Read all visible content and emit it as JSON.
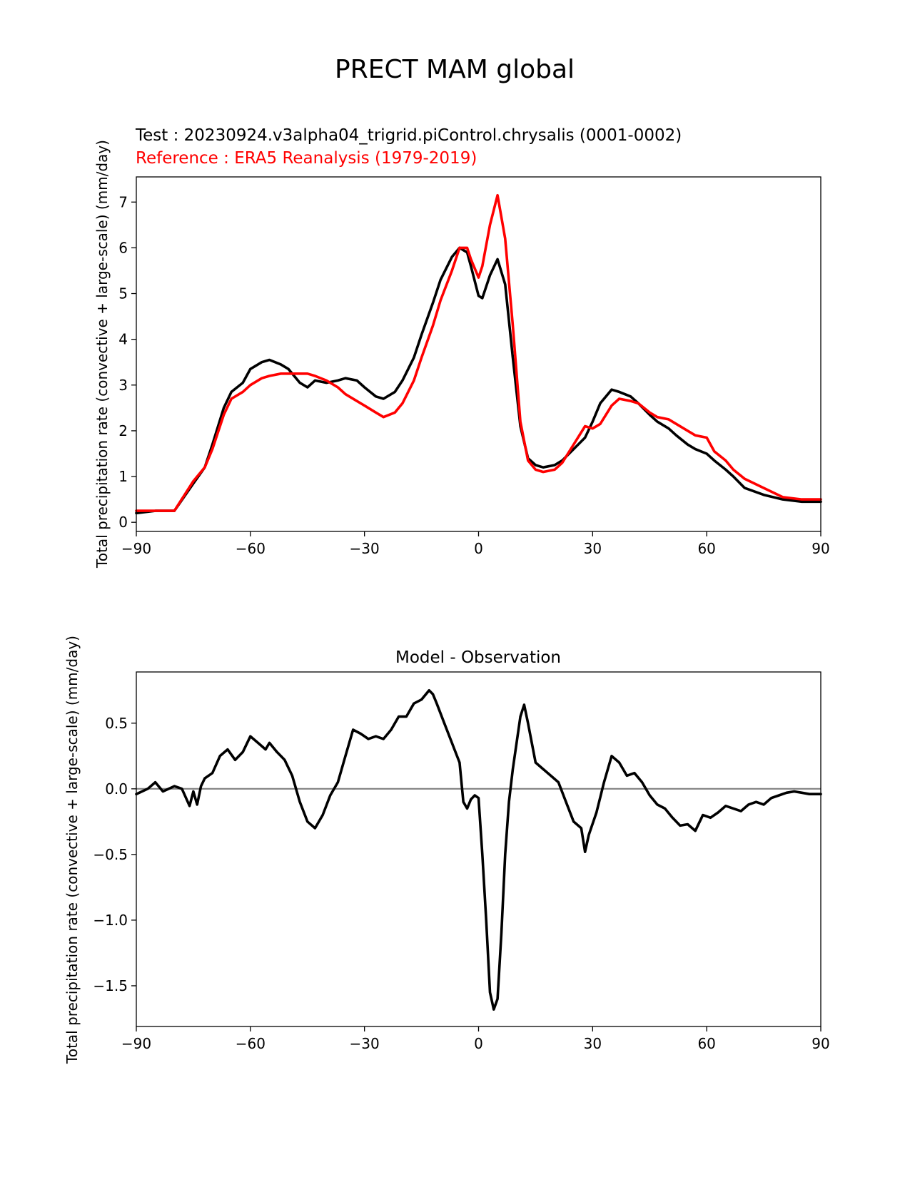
{
  "figure": {
    "suptitle": "PRECT MAM global"
  },
  "chart_data": [
    {
      "type": "line",
      "test_label": "Test : 20230924.v3alpha04_trigrid.piControl.chrysalis (0001-0002)",
      "reference_label": "Reference : ERA5 Reanalysis (1979-2019)",
      "xlabel": "",
      "ylabel": "Total precipitation rate (convective + large-scale) (mm/day)",
      "xlim": [
        -90,
        90
      ],
      "ylim": [
        -0.2,
        7.55
      ],
      "xticks": [
        -90,
        -60,
        -30,
        0,
        30,
        60,
        90
      ],
      "xtick_labels": [
        "−90",
        "−60",
        "−30",
        "0",
        "30",
        "60",
        "90"
      ],
      "yticks": [
        0,
        1,
        2,
        3,
        4,
        5,
        6,
        7
      ],
      "ytick_labels": [
        "0",
        "1",
        "2",
        "3",
        "4",
        "5",
        "6",
        "7"
      ],
      "grid": false,
      "colors": {
        "test": "#000000",
        "reference": "#ff0000"
      },
      "x": [
        -90,
        -85,
        -80,
        -75,
        -72,
        -70,
        -67,
        -65,
        -62,
        -60,
        -57,
        -55,
        -52,
        -50,
        -47,
        -45,
        -43,
        -40,
        -37,
        -35,
        -32,
        -30,
        -27,
        -25,
        -22,
        -20,
        -17,
        -15,
        -12,
        -10,
        -7,
        -5,
        -3,
        -2,
        0,
        1,
        3,
        5,
        7,
        9,
        11,
        13,
        15,
        17,
        20,
        22,
        25,
        28,
        30,
        32,
        35,
        37,
        40,
        42,
        45,
        47,
        50,
        52,
        55,
        57,
        60,
        62,
        65,
        67,
        70,
        75,
        80,
        85,
        90
      ],
      "series": [
        {
          "values": [
            0.2,
            0.25,
            0.25,
            0.85,
            1.2,
            1.7,
            2.5,
            2.85,
            3.05,
            3.35,
            3.5,
            3.55,
            3.45,
            3.35,
            3.05,
            2.95,
            3.1,
            3.05,
            3.1,
            3.15,
            3.1,
            2.95,
            2.75,
            2.7,
            2.85,
            3.1,
            3.6,
            4.1,
            4.8,
            5.3,
            5.8,
            6.0,
            5.9,
            5.6,
            4.95,
            4.9,
            5.4,
            5.75,
            5.2,
            3.6,
            2.1,
            1.4,
            1.25,
            1.2,
            1.25,
            1.35,
            1.6,
            1.85,
            2.2,
            2.6,
            2.9,
            2.85,
            2.75,
            2.6,
            2.35,
            2.2,
            2.05,
            1.9,
            1.7,
            1.6,
            1.5,
            1.35,
            1.15,
            1.0,
            0.75,
            0.6,
            0.5,
            0.45,
            0.45
          ]
        },
        {
          "values": [
            0.25,
            0.25,
            0.25,
            0.9,
            1.2,
            1.6,
            2.35,
            2.7,
            2.85,
            3.0,
            3.15,
            3.2,
            3.25,
            3.25,
            3.25,
            3.25,
            3.2,
            3.1,
            2.95,
            2.8,
            2.65,
            2.55,
            2.4,
            2.3,
            2.4,
            2.6,
            3.1,
            3.6,
            4.3,
            4.85,
            5.5,
            6.0,
            6.0,
            5.75,
            5.35,
            5.6,
            6.5,
            7.15,
            6.2,
            4.3,
            2.2,
            1.35,
            1.15,
            1.1,
            1.15,
            1.3,
            1.7,
            2.1,
            2.05,
            2.15,
            2.55,
            2.7,
            2.65,
            2.6,
            2.4,
            2.3,
            2.25,
            2.15,
            2.0,
            1.9,
            1.85,
            1.55,
            1.35,
            1.15,
            0.95,
            0.75,
            0.55,
            0.5,
            0.5
          ]
        }
      ]
    },
    {
      "type": "line",
      "title": "Model - Observation",
      "xlabel": "",
      "ylabel": "Total precipitation rate (convective + large-scale) (mm/day)",
      "xlim": [
        -90,
        90
      ],
      "ylim": [
        -1.81,
        0.89
      ],
      "xticks": [
        -90,
        -60,
        -30,
        0,
        30,
        60,
        90
      ],
      "xtick_labels": [
        "−90",
        "−60",
        "−30",
        "0",
        "30",
        "60",
        "90"
      ],
      "yticks": [
        -1.5,
        -1.0,
        -0.5,
        0.0,
        0.5
      ],
      "ytick_labels": [
        "−1.5",
        "−1.0",
        "−0.5",
        "0.0",
        "0.5"
      ],
      "grid": false,
      "zero_line": true,
      "colors": {
        "line": "#000000",
        "zero_line": "#808080"
      },
      "x": [
        -90,
        -87,
        -85,
        -83,
        -80,
        -78,
        -76,
        -75,
        -74,
        -73,
        -72,
        -70,
        -68,
        -66,
        -64,
        -62,
        -60,
        -58,
        -56,
        -55,
        -53,
        -51,
        -49,
        -47,
        -45,
        -43,
        -41,
        -39,
        -37,
        -35,
        -33,
        -31,
        -29,
        -27,
        -25,
        -23,
        -21,
        -19,
        -17,
        -15,
        -13,
        -12,
        -11,
        -9,
        -7,
        -5,
        -4,
        -3,
        -2,
        -1,
        0,
        1,
        2,
        3,
        4,
        5,
        6,
        7,
        8,
        9,
        10,
        11,
        12,
        13,
        14,
        15,
        17,
        19,
        21,
        23,
        25,
        27,
        28,
        29,
        31,
        33,
        35,
        37,
        39,
        41,
        43,
        45,
        47,
        49,
        51,
        53,
        55,
        57,
        59,
        61,
        63,
        65,
        67,
        69,
        71,
        73,
        75,
        77,
        79,
        81,
        83,
        85,
        87,
        89,
        90
      ],
      "values": [
        -0.04,
        0.0,
        0.05,
        -0.02,
        0.02,
        0.0,
        -0.13,
        -0.02,
        -0.12,
        0.02,
        0.08,
        0.12,
        0.25,
        0.3,
        0.22,
        0.28,
        0.4,
        0.35,
        0.3,
        0.35,
        0.28,
        0.22,
        0.1,
        -0.1,
        -0.25,
        -0.3,
        -0.2,
        -0.05,
        0.05,
        0.25,
        0.45,
        0.42,
        0.38,
        0.4,
        0.38,
        0.45,
        0.55,
        0.55,
        0.65,
        0.68,
        0.75,
        0.72,
        0.65,
        0.5,
        0.35,
        0.2,
        -0.1,
        -0.15,
        -0.08,
        -0.05,
        -0.07,
        -0.5,
        -1.0,
        -1.55,
        -1.68,
        -1.6,
        -1.1,
        -0.5,
        -0.1,
        0.15,
        0.35,
        0.55,
        0.64,
        0.5,
        0.35,
        0.2,
        0.15,
        0.1,
        0.05,
        -0.1,
        -0.25,
        -0.3,
        -0.48,
        -0.35,
        -0.18,
        0.05,
        0.25,
        0.2,
        0.1,
        0.12,
        0.05,
        -0.05,
        -0.12,
        -0.15,
        -0.22,
        -0.28,
        -0.27,
        -0.32,
        -0.2,
        -0.22,
        -0.18,
        -0.13,
        -0.15,
        -0.17,
        -0.12,
        -0.1,
        -0.12,
        -0.07,
        -0.05,
        -0.03,
        -0.02,
        -0.03,
        -0.04,
        -0.04,
        -0.04
      ]
    }
  ]
}
